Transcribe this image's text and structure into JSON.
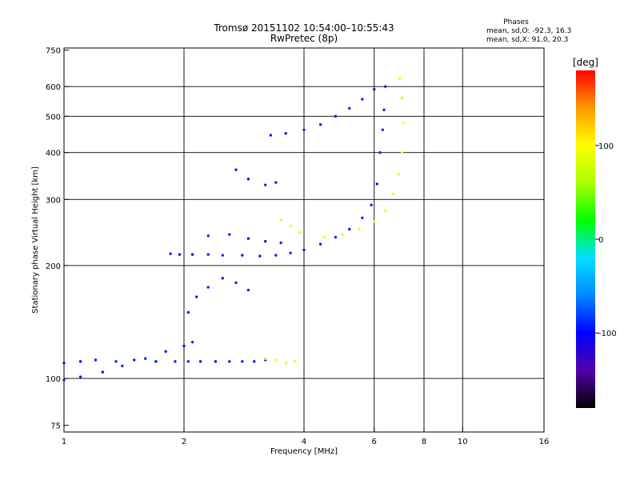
{
  "header": {
    "title_line1": "Tromsø 20151102 10:54:00–10:55:43",
    "title_line2": "RwPretec (8p)"
  },
  "phase_box": {
    "heading": "Phases",
    "line_o": "mean, sd,O: -92.3, 16.3",
    "line_x": "mean, sd,X:  91.0, 20.3"
  },
  "colorbar": {
    "unit_label": "[deg]",
    "tick_labels": [
      "100",
      "0",
      "-100"
    ],
    "tick_values": [
      100,
      0,
      -100
    ],
    "range": [
      -180,
      180
    ],
    "colors": [
      "#000000",
      "#5500aa",
      "#0000ff",
      "#0088ff",
      "#00e0ff",
      "#00ff00",
      "#aaff00",
      "#ffff00",
      "#ff9900",
      "#ff0000"
    ]
  },
  "chart_data": {
    "type": "scatter",
    "title": "Tromsø 20151102 10:54:00–10:55:43",
    "subtitle": "RwPretec (8p)",
    "xlabel": "Frequency [MHz]",
    "ylabel": "Stationary phase Virtual Height [km]",
    "x_scale": "log",
    "y_scale": "log",
    "xlim": [
      1,
      16
    ],
    "ylim": [
      72,
      760
    ],
    "x_ticks": [
      1,
      2,
      4,
      6,
      8,
      10,
      16
    ],
    "x_tick_labels": [
      "1",
      "2",
      "4",
      "6",
      "8",
      "10",
      "16"
    ],
    "x_gridlines": [
      2,
      4,
      6,
      8,
      10
    ],
    "y_ticks": [
      75,
      100,
      200,
      300,
      400,
      500,
      600,
      750
    ],
    "y_tick_labels": [
      "75",
      "100",
      "200",
      "300",
      "400",
      "500",
      "600",
      "750"
    ],
    "y_gridlines": [
      100,
      200,
      300,
      400,
      500,
      600
    ],
    "grid": true,
    "color_dimension": "phase [deg]",
    "series": [
      {
        "points": [
          [
            1.0,
            110,
            -90
          ],
          [
            1.1,
            111,
            -95
          ],
          [
            1.2,
            112,
            -92
          ],
          [
            1.35,
            111,
            -88
          ],
          [
            1.5,
            112,
            -92
          ],
          [
            1.7,
            111,
            -95
          ],
          [
            1.9,
            111,
            -90
          ],
          [
            2.05,
            111,
            -88
          ],
          [
            2.2,
            111,
            -92
          ],
          [
            2.4,
            111,
            -95
          ],
          [
            2.6,
            111,
            -90
          ],
          [
            2.8,
            111,
            -88
          ],
          [
            3.0,
            111,
            -92
          ],
          [
            3.2,
            112,
            -85
          ]
        ]
      },
      {
        "points": [
          [
            1.0,
            99,
            -90
          ],
          [
            1.1,
            101,
            -92
          ],
          [
            1.25,
            104,
            -95
          ],
          [
            1.4,
            108,
            -90
          ],
          [
            1.6,
            113,
            -88
          ],
          [
            1.8,
            118,
            -92
          ],
          [
            2.0,
            122,
            -95
          ],
          [
            2.1,
            125,
            -90
          ]
        ]
      },
      {
        "points": [
          [
            1.85,
            215,
            -90
          ],
          [
            1.95,
            214,
            -92
          ],
          [
            2.1,
            214,
            -95
          ],
          [
            2.3,
            214,
            -90
          ],
          [
            2.5,
            213,
            -88
          ],
          [
            2.8,
            213,
            -92
          ],
          [
            3.1,
            212,
            -95
          ],
          [
            3.4,
            213,
            -90
          ],
          [
            3.7,
            216,
            -88
          ],
          [
            4.0,
            220,
            -92
          ],
          [
            4.4,
            228,
            -90
          ],
          [
            4.8,
            238,
            -88
          ],
          [
            5.2,
            250,
            -92
          ],
          [
            5.6,
            268,
            -90
          ],
          [
            5.9,
            290,
            -88
          ],
          [
            6.1,
            330,
            -92
          ],
          [
            6.2,
            400,
            -90
          ],
          [
            6.3,
            460,
            -88
          ],
          [
            6.35,
            520,
            -92
          ],
          [
            6.4,
            600,
            -90
          ]
        ]
      },
      {
        "points": [
          [
            2.3,
            240,
            -90
          ],
          [
            2.6,
            242,
            -88
          ],
          [
            2.9,
            236,
            -92
          ],
          [
            3.2,
            232,
            -95
          ],
          [
            3.5,
            230,
            -90
          ]
        ]
      },
      {
        "points": [
          [
            3.3,
            445,
            -95
          ],
          [
            3.6,
            450,
            -92
          ],
          [
            4.0,
            460,
            -90
          ],
          [
            4.4,
            475,
            -88
          ],
          [
            4.8,
            500,
            -92
          ],
          [
            5.2,
            525,
            -90
          ],
          [
            5.6,
            555,
            -88
          ],
          [
            6.0,
            590,
            -92
          ]
        ]
      },
      {
        "points": [
          [
            2.7,
            360,
            -92
          ],
          [
            2.9,
            340,
            -95
          ],
          [
            3.2,
            328,
            -90
          ],
          [
            3.4,
            333,
            -88
          ]
        ]
      },
      {
        "points": [
          [
            2.05,
            150,
            -90
          ],
          [
            2.15,
            165,
            -92
          ],
          [
            2.3,
            175,
            -88
          ],
          [
            2.5,
            185,
            -95
          ],
          [
            2.7,
            180,
            -90
          ],
          [
            2.9,
            172,
            -88
          ]
        ]
      },
      {
        "points": [
          [
            4.5,
            238,
            90
          ],
          [
            5.0,
            242,
            92
          ],
          [
            5.5,
            250,
            88
          ],
          [
            6.0,
            262,
            95
          ],
          [
            6.4,
            280,
            90
          ],
          [
            6.7,
            310,
            92
          ],
          [
            6.9,
            350,
            88
          ],
          [
            7.05,
            400,
            90
          ],
          [
            7.1,
            480,
            92
          ],
          [
            7.05,
            560,
            88
          ],
          [
            6.95,
            630,
            90
          ]
        ]
      },
      {
        "points": [
          [
            3.2,
            113,
            90
          ],
          [
            3.4,
            112,
            92
          ],
          [
            3.6,
            110,
            88
          ],
          [
            3.8,
            111,
            90
          ]
        ]
      },
      {
        "points": [
          [
            3.5,
            265,
            88
          ],
          [
            3.7,
            255,
            92
          ],
          [
            3.9,
            245,
            90
          ]
        ]
      }
    ]
  }
}
